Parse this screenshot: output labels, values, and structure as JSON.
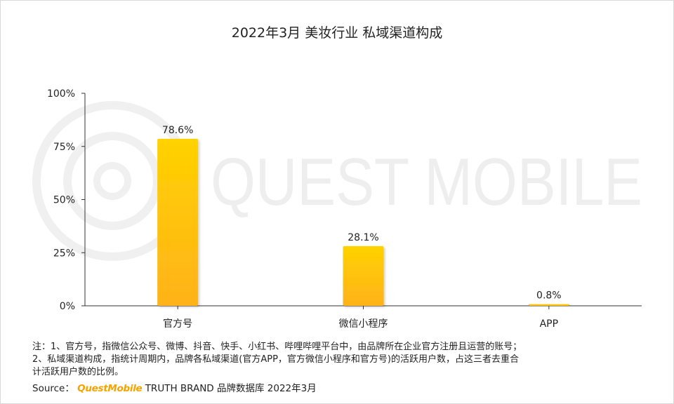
{
  "chart_data": {
    "type": "bar",
    "title": "2022年3月 美妆行业 私域渠道构成",
    "categories": [
      "官方号",
      "微信小程序",
      "APP"
    ],
    "values": [
      78.6,
      28.1,
      0.8
    ],
    "value_labels": [
      "78.6%",
      "28.1%",
      "0.8%"
    ],
    "yticks": [
      "0%",
      "25%",
      "50%",
      "75%",
      "100%"
    ],
    "ylim": [
      0,
      100
    ],
    "xlabel": "",
    "ylabel": "",
    "grid": false,
    "legend": "none"
  },
  "colors": {
    "bar_top": "#ffd200",
    "bar_bottom": "#ffb21a",
    "axis": "#333333",
    "watermark": "#eeeeee",
    "brand": "#f5a300"
  },
  "watermark": {
    "text": "QUEST MOBILE",
    "logo_icon": "questmobile-logo-icon"
  },
  "notes": {
    "line1": "注：1、官方号，指微信公众号、微博、抖音、快手、小红书、哔哩哔哩平台中，由品牌所在企业官方注册且运营的账号；",
    "line2": "2、私域渠道构成，指统计周期内，品牌各私域渠道(官方APP，官方微信小程序和官方号)的活跃用户数，占这三者去重合",
    "line3": "计活跃用户数的比例。"
  },
  "source": {
    "prefix": "Source：",
    "brand": "QuestMobile",
    "suffix": "TRUTH BRAND 品牌数据库 2022年3月"
  }
}
